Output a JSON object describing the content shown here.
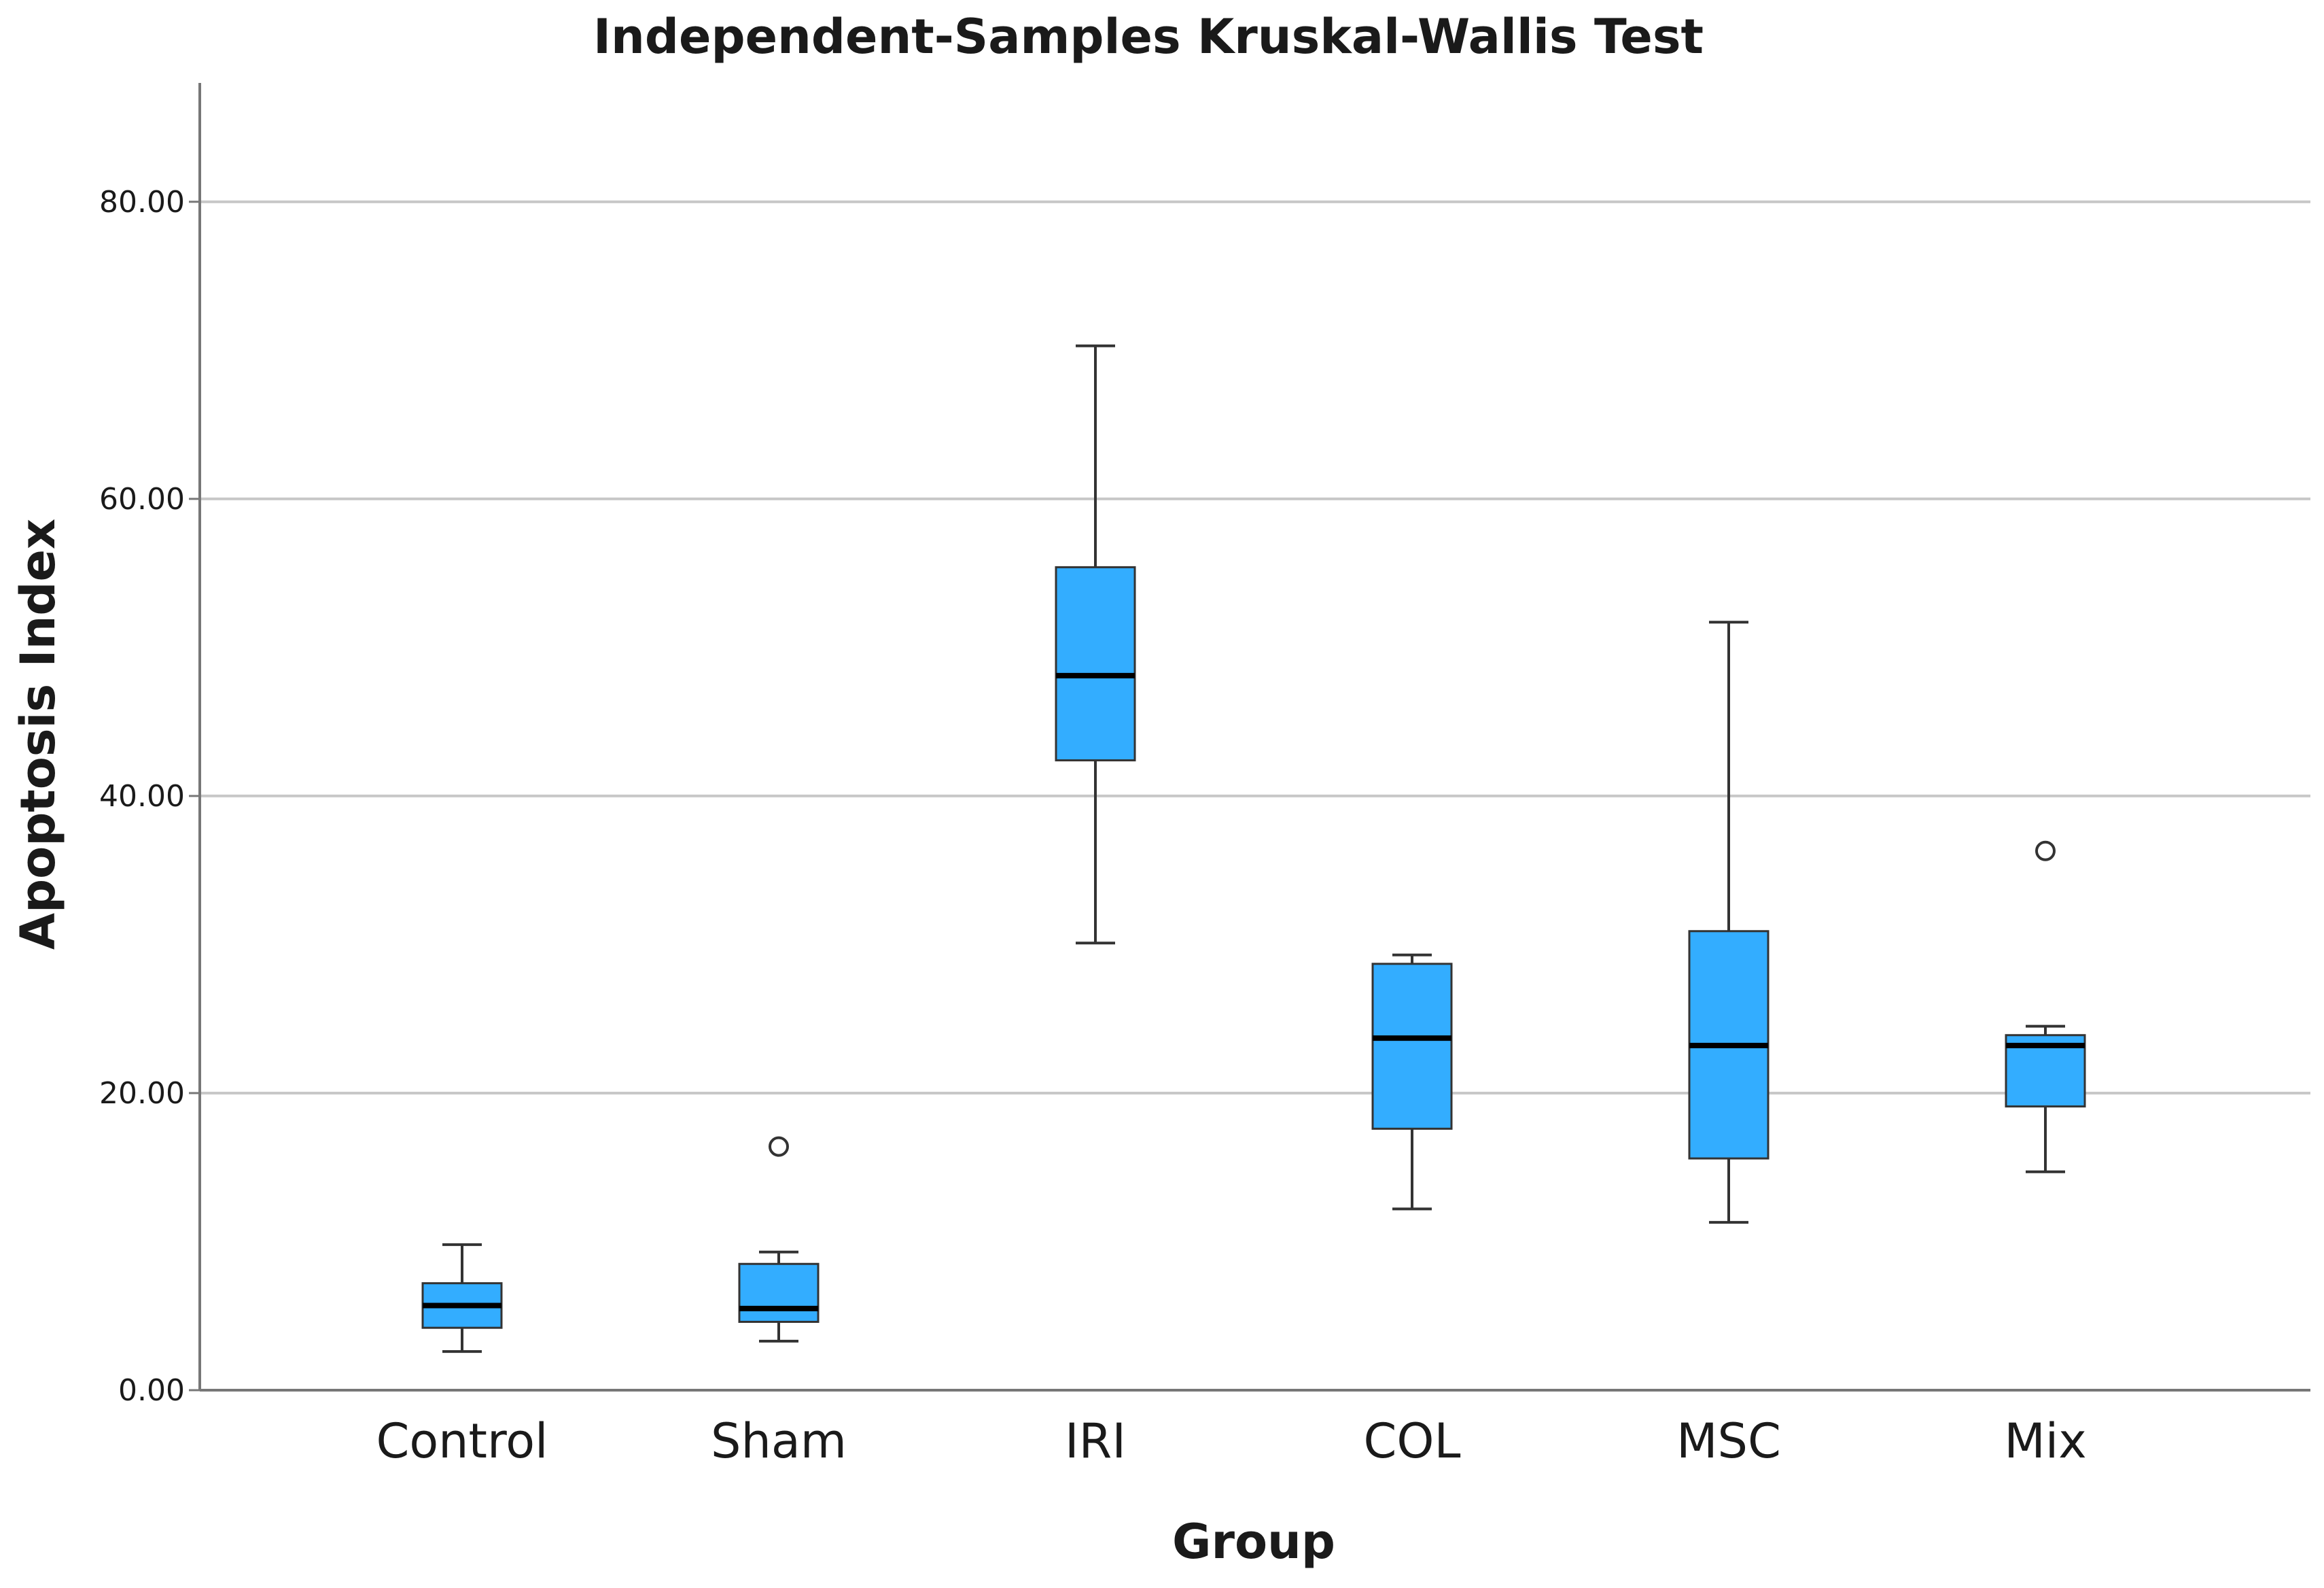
{
  "chart_data": {
    "type": "boxplot",
    "title": "Independent-Samples Kruskal-Wallis Test",
    "xlabel": "Group",
    "ylabel": "Apoptosis Index",
    "ylim": [
      0,
      88
    ],
    "yticks": [
      0,
      20,
      40,
      60,
      80
    ],
    "ytick_labels": [
      "0.00",
      "20.00",
      "40.00",
      "60.00",
      "80.00"
    ],
    "grid": "horizontal",
    "box_color": "#33adff",
    "categories": [
      "Control",
      "Sham",
      "IRI",
      "COL",
      "MSC",
      "Mix"
    ],
    "boxes": [
      {
        "name": "Control",
        "whisker_low": 2.6,
        "q1": 4.2,
        "median": 5.7,
        "q3": 7.2,
        "whisker_high": 9.8,
        "outliers": []
      },
      {
        "name": "Sham",
        "whisker_low": 3.3,
        "q1": 4.6,
        "median": 5.5,
        "q3": 8.5,
        "whisker_high": 9.3,
        "outliers": [
          16.4
        ]
      },
      {
        "name": "IRI",
        "whisker_low": 30.1,
        "q1": 42.4,
        "median": 48.1,
        "q3": 55.4,
        "whisker_high": 70.3,
        "outliers": []
      },
      {
        "name": "COL",
        "whisker_low": 12.2,
        "q1": 17.6,
        "median": 23.7,
        "q3": 28.7,
        "whisker_high": 29.3,
        "outliers": []
      },
      {
        "name": "MSC",
        "whisker_low": 11.3,
        "q1": 15.6,
        "median": 23.2,
        "q3": 30.9,
        "whisker_high": 51.7,
        "outliers": []
      },
      {
        "name": "Mix",
        "whisker_low": 14.7,
        "q1": 19.1,
        "median": 23.2,
        "q3": 23.9,
        "whisker_high": 24.5,
        "outliers": [
          36.3
        ]
      }
    ]
  }
}
